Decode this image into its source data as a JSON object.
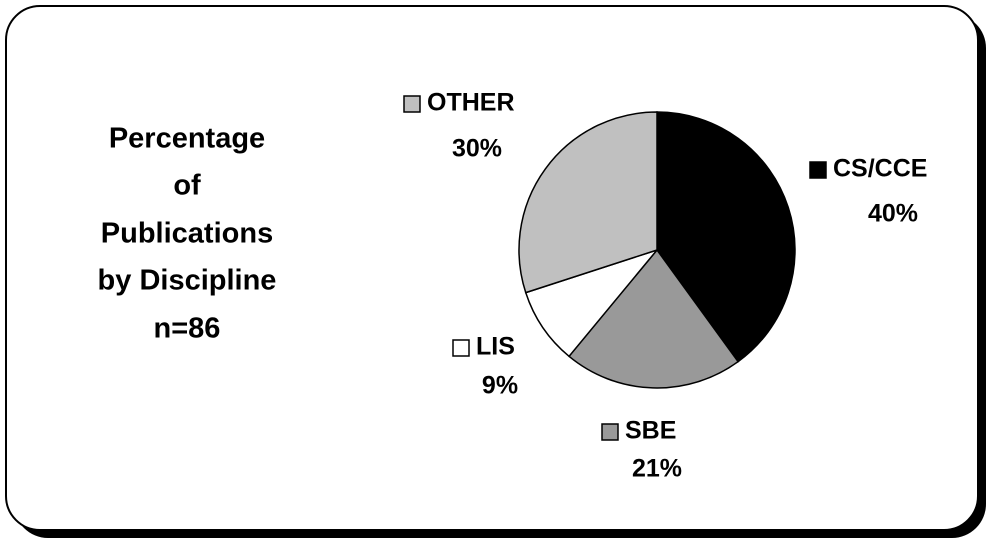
{
  "chart_data": {
    "type": "pie",
    "title": [
      "Percentage",
      "of",
      "Publications",
      "by Discipline"
    ],
    "subtitle": "n=86",
    "categories": [
      "CS/CCE",
      "SBE",
      "LIS",
      "OTHER"
    ],
    "values": [
      40,
      21,
      9,
      30
    ],
    "value_labels": [
      "40%",
      "21%",
      "9%",
      "30%"
    ],
    "colors": [
      "#000000",
      "#999999",
      "#ffffff",
      "#c0c0c0"
    ]
  }
}
